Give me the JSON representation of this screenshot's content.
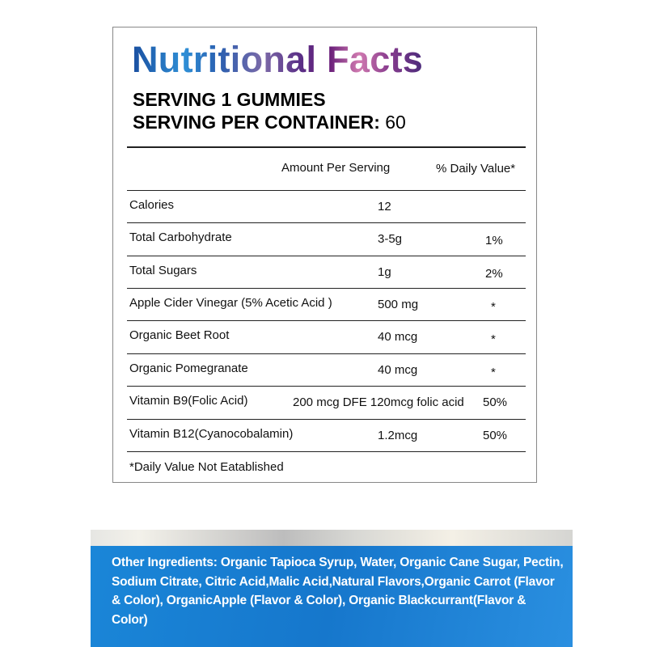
{
  "title": "Nutritional Facts",
  "serving_size": "SERVING 1 GUMMIES",
  "servings_label": "SERVING PER CONTAINER:",
  "servings_value": "60",
  "headers": {
    "amount": "Amount Per Serving",
    "dv": "% Daily Value*"
  },
  "rows": [
    {
      "name": "Calories",
      "amount": "12",
      "dv": ""
    },
    {
      "name": "Total Carbohydrate",
      "amount": "3-5g",
      "dv": "1%"
    },
    {
      "name": "Total Sugars",
      "amount": "1g",
      "dv": "2%"
    },
    {
      "name": "Apple Cider Vinegar (5% Acetic Acid )",
      "amount": "500 mg",
      "dv": "*"
    },
    {
      "name": "Organic Beet Root",
      "amount": "40 mcg",
      "dv": "*"
    },
    {
      "name": "Organic Pomegranate",
      "amount": "40 mcg",
      "dv": "*"
    },
    {
      "name": "Vitamin B9(Folic Acid)",
      "amount": "200 mcg DFE 120mcg folic acid",
      "dv": "50%"
    },
    {
      "name": "Vitamin B12(Cyanocobalamin)",
      "amount": "1.2mcg",
      "dv": "50%"
    }
  ],
  "footnote": "*Daily Value Not Eatablished",
  "ingredients": "Other Ingredients: Organic Tapioca Syrup, Water, Organic Cane Sugar, Pectin, Sodium Citrate, Citric Acid,Malic Acid,Natural Flavors,Organic Carrot (Flavor & Color), OrganicApple (Flavor & Color), Organic Blackcurrant(Flavor & Color)",
  "colors": {
    "banner_blue": "#1a80d4"
  }
}
